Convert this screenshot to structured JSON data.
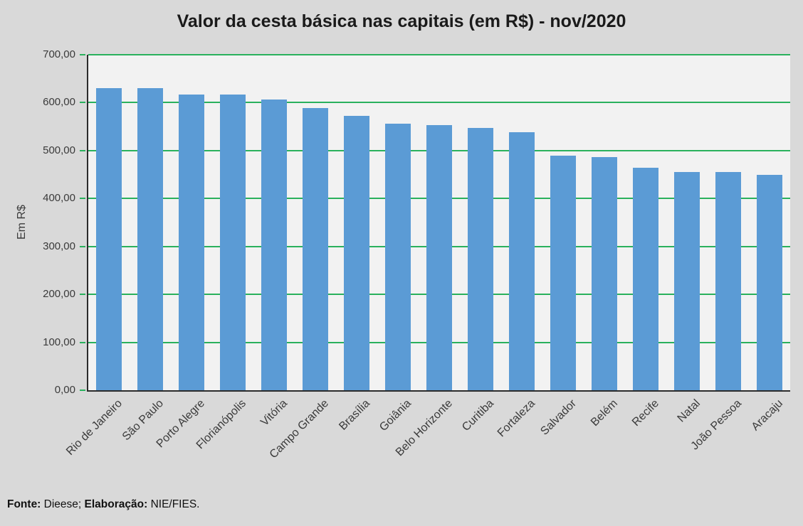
{
  "title": "Valor da cesta básica nas capitais (em R$) - nov/2020",
  "footer": {
    "fonte_label": "Fonte:",
    "fonte_value": " Dieese; ",
    "elaboracao_label": "Elaboração:",
    "elaboracao_value": " NIE/FIES."
  },
  "chart_data": {
    "type": "bar",
    "title": "Valor da cesta básica nas capitais (em R$) - nov/2020",
    "xlabel": "",
    "ylabel": "Em R$",
    "ylim": [
      0,
      700
    ],
    "ytick_step": 100,
    "ytick_labels": [
      "0,00",
      "100,00",
      "200,00",
      "300,00",
      "400,00",
      "500,00",
      "600,00",
      "700,00"
    ],
    "grid": true,
    "legend": false,
    "categories": [
      "Rio de Janeiro",
      "São Paulo",
      "Porto Alegre",
      "Florianópolis",
      "Vitória",
      "Campo Grande",
      "Brasília",
      "Goiânia",
      "Belo Horizonte",
      "Curitiba",
      "Fortaleza",
      "Salvador",
      "Belém",
      "Recife",
      "Natal",
      "João Pessoa",
      "Aracaju"
    ],
    "values": [
      630,
      630,
      617,
      617,
      607,
      589,
      572,
      556,
      553,
      548,
      539,
      489,
      487,
      464,
      456,
      455,
      450
    ]
  },
  "colors": {
    "background": "#d9d9d9",
    "plot_background": "#f2f2f2",
    "bar": "#5b9bd5",
    "gridline": "#2ab15d",
    "axis": "#2b2b2b",
    "text": "#3a3a3a",
    "title": "#1a1a1a"
  }
}
